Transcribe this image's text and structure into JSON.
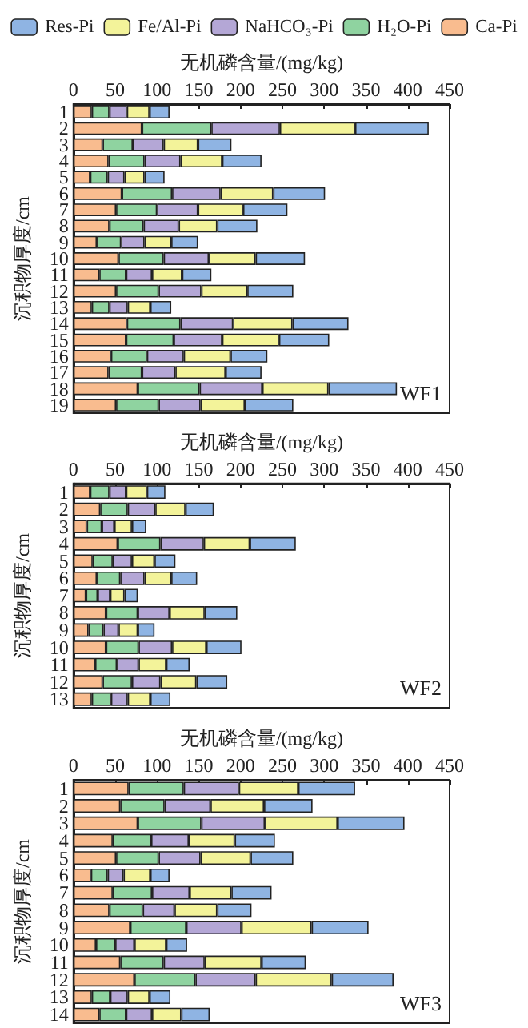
{
  "chart_data": [
    {
      "type": "bar",
      "orientation": "horizontal",
      "stacked": true,
      "xlabel": "无机磷含量/(mg/kg)",
      "ylabel": "沉积物厚度/cm",
      "xlim": [
        0,
        450
      ],
      "xticks": [
        0,
        50,
        100,
        150,
        200,
        250,
        300,
        350,
        400,
        450
      ],
      "legend": "top",
      "grid": false,
      "annotations": [
        "WF1"
      ],
      "categories": [
        "1",
        "2",
        "3",
        "4",
        "5",
        "6",
        "7",
        "8",
        "9",
        "10",
        "11",
        "12",
        "13",
        "14",
        "15",
        "16",
        "17",
        "18",
        "19"
      ],
      "series": [
        {
          "name": "Ca-Pi",
          "color": "#f9bc8f",
          "values": [
            22,
            82,
            35,
            42,
            20,
            58,
            51,
            43,
            28,
            54,
            31,
            51,
            22,
            64,
            63,
            45,
            42,
            77,
            51
          ]
        },
        {
          "name": "H₂O-Pi",
          "color": "#8fd3a0",
          "values": [
            21,
            83,
            36,
            43,
            21,
            60,
            49,
            41,
            29,
            54,
            32,
            51,
            21,
            64,
            57,
            43,
            40,
            74,
            51
          ]
        },
        {
          "name": "NaHCO₃-Pi",
          "color": "#b4a7d6",
          "values": [
            21,
            82,
            37,
            43,
            20,
            58,
            49,
            42,
            28,
            54,
            31,
            51,
            22,
            63,
            58,
            44,
            40,
            75,
            50
          ]
        },
        {
          "name": "Fe/Al-Pi",
          "color": "#f3f39a",
          "values": [
            27,
            90,
            41,
            50,
            24,
            63,
            54,
            46,
            32,
            56,
            36,
            55,
            27,
            71,
            68,
            56,
            60,
            79,
            53
          ]
        },
        {
          "name": "Res-Pi",
          "color": "#8fb4e3",
          "values": [
            24,
            88,
            40,
            47,
            24,
            62,
            53,
            48,
            32,
            59,
            35,
            55,
            25,
            67,
            60,
            44,
            43,
            82,
            58
          ]
        }
      ]
    },
    {
      "type": "bar",
      "orientation": "horizontal",
      "stacked": true,
      "xlabel": "无机磷含量/(mg/kg)",
      "ylabel": "沉积物厚度/cm",
      "xlim": [
        0,
        450
      ],
      "xticks": [
        0,
        50,
        100,
        150,
        200,
        250,
        300,
        350,
        400,
        450
      ],
      "grid": false,
      "annotations": [
        "WF2"
      ],
      "categories": [
        "1",
        "2",
        "3",
        "4",
        "5",
        "6",
        "7",
        "8",
        "9",
        "10",
        "11",
        "12",
        "13"
      ],
      "series": [
        {
          "color": "#f9bc8f",
          "values": [
            20,
            32,
            16,
            53,
            23,
            28,
            15,
            39,
            18,
            39,
            26,
            35,
            22
          ]
        },
        {
          "color": "#8fd3a0",
          "values": [
            23,
            33,
            18,
            51,
            24,
            28,
            14,
            38,
            18,
            39,
            26,
            35,
            23
          ]
        },
        {
          "color": "#b4a7d6",
          "values": [
            20,
            33,
            15,
            52,
            23,
            29,
            15,
            38,
            18,
            40,
            26,
            34,
            20
          ]
        },
        {
          "color": "#f3f39a",
          "values": [
            25,
            36,
            21,
            55,
            27,
            32,
            17,
            42,
            23,
            41,
            33,
            43,
            27
          ]
        },
        {
          "color": "#8fb4e3",
          "values": [
            22,
            34,
            17,
            55,
            25,
            31,
            16,
            39,
            20,
            42,
            28,
            37,
            24
          ]
        }
      ]
    },
    {
      "type": "bar",
      "orientation": "horizontal",
      "stacked": true,
      "xlabel": "无机磷含量/(mg/kg)",
      "ylabel": "沉积物厚度/cm",
      "xlim": [
        0,
        450
      ],
      "xticks": [
        0,
        50,
        100,
        150,
        200,
        250,
        300,
        350,
        400,
        450
      ],
      "grid": false,
      "annotations": [
        "WF3"
      ],
      "categories": [
        "1",
        "2",
        "3",
        "4",
        "5",
        "6",
        "7",
        "8",
        "9",
        "10",
        "11",
        "12",
        "13",
        "14"
      ],
      "series": [
        {
          "color": "#f9bc8f",
          "values": [
            66,
            56,
            77,
            47,
            51,
            21,
            47,
            43,
            68,
            27,
            56,
            73,
            22,
            31
          ]
        },
        {
          "color": "#8fd3a0",
          "values": [
            66,
            53,
            76,
            46,
            51,
            20,
            47,
            40,
            67,
            23,
            52,
            73,
            22,
            32
          ]
        },
        {
          "color": "#b4a7d6",
          "values": [
            66,
            55,
            76,
            45,
            50,
            19,
            45,
            38,
            66,
            23,
            49,
            72,
            21,
            31
          ]
        },
        {
          "color": "#f3f39a",
          "values": [
            71,
            64,
            87,
            55,
            60,
            32,
            50,
            51,
            84,
            38,
            68,
            91,
            26,
            35
          ]
        },
        {
          "color": "#8fb4e3",
          "values": [
            68,
            58,
            80,
            48,
            51,
            23,
            48,
            41,
            68,
            25,
            53,
            74,
            25,
            34
          ]
        }
      ]
    }
  ]
}
